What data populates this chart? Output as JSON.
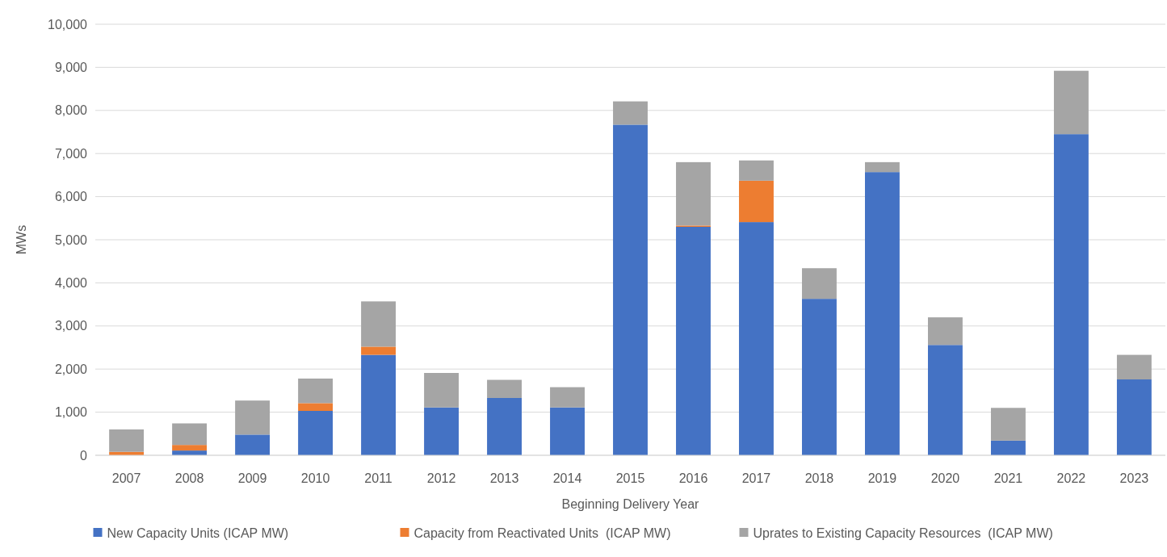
{
  "chart_data": {
    "type": "bar",
    "stacked": true,
    "xlabel": "Beginning Delivery Year",
    "ylabel": "MWs",
    "categories": [
      "2007",
      "2008",
      "2009",
      "2010",
      "2011",
      "2012",
      "2013",
      "2014",
      "2015",
      "2016",
      "2017",
      "2018",
      "2019",
      "2020",
      "2021",
      "2022",
      "2023"
    ],
    "series": [
      {
        "name": "New Capacity Units (ICAP MW)",
        "color": "#4472c4",
        "values": [
          0,
          110,
          480,
          1030,
          2330,
          1110,
          1330,
          1110,
          7670,
          5300,
          5410,
          3630,
          6570,
          2560,
          340,
          7450,
          1760
        ]
      },
      {
        "name": "Capacity from Reactivated Units  (ICAP MW)",
        "color": "#ed7d31",
        "values": [
          80,
          130,
          0,
          180,
          190,
          0,
          0,
          0,
          0,
          30,
          960,
          0,
          0,
          0,
          0,
          0,
          0
        ]
      },
      {
        "name": "Uprates to Existing Capacity Resources  (ICAP MW)",
        "color": "#a5a5a5",
        "values": [
          520,
          500,
          790,
          570,
          1050,
          800,
          420,
          470,
          540,
          1470,
          470,
          710,
          230,
          640,
          760,
          1470,
          570
        ]
      }
    ],
    "ylim": [
      0,
      10000
    ],
    "yticks": [
      {
        "value": 0,
        "label": "0"
      },
      {
        "value": 1000,
        "label": "1,000"
      },
      {
        "value": 2000,
        "label": "2,000"
      },
      {
        "value": 3000,
        "label": "3,000"
      },
      {
        "value": 4000,
        "label": "4,000"
      },
      {
        "value": 5000,
        "label": "5,000"
      },
      {
        "value": 6000,
        "label": "6,000"
      },
      {
        "value": 7000,
        "label": "7,000"
      },
      {
        "value": 8000,
        "label": "8,000"
      },
      {
        "value": 9000,
        "label": "9,000"
      },
      {
        "value": 10000,
        "label": "10,000"
      }
    ],
    "grid": "y",
    "legend": "bottom"
  }
}
